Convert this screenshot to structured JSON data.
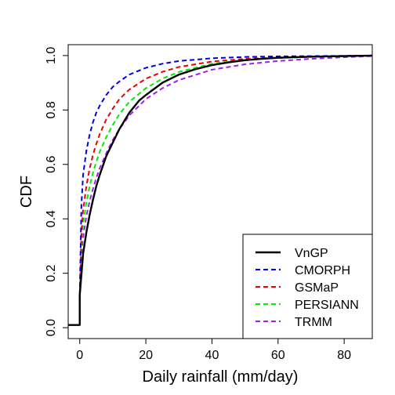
{
  "chart_data": {
    "type": "line",
    "title": "",
    "xlabel": "Daily rainfall (mm/day)",
    "ylabel": "CDF",
    "xlim": [
      -3.5,
      88.5
    ],
    "ylim": [
      -0.04,
      1.04
    ],
    "x_ticks": [
      0,
      20,
      40,
      60,
      80
    ],
    "x_tick_labels": [
      "0",
      "20",
      "40",
      "60",
      "80"
    ],
    "y_ticks": [
      0.0,
      0.2,
      0.4,
      0.6,
      0.8,
      1.0
    ],
    "y_tick_labels": [
      "0.0",
      "0.2",
      "0.4",
      "0.6",
      "0.8",
      "1.0"
    ],
    "grid": false,
    "legend_position": "bottom-right",
    "series": [
      {
        "name": "VnGP",
        "color": "#000000",
        "dash": "solid",
        "x": [
          -3.5,
          0,
          0,
          1,
          2,
          3,
          4,
          5,
          6,
          8,
          10,
          12,
          15,
          18,
          20,
          25,
          30,
          35,
          40,
          45,
          50,
          55,
          60,
          70,
          80,
          88.5
        ],
        "y": [
          0.01,
          0.01,
          0.12,
          0.27,
          0.35,
          0.415,
          0.47,
          0.52,
          0.56,
          0.63,
          0.68,
          0.73,
          0.79,
          0.835,
          0.855,
          0.9,
          0.93,
          0.95,
          0.965,
          0.975,
          0.983,
          0.988,
          0.992,
          0.996,
          0.998,
          1.0
        ]
      },
      {
        "name": "CMORPH",
        "color": "#0000ee",
        "dash": "dashed",
        "x": [
          0,
          0.5,
          1,
          2,
          3,
          4,
          5,
          6,
          8,
          10,
          12,
          15,
          20,
          25,
          30,
          40,
          50,
          60,
          70,
          80,
          88.5
        ],
        "y": [
          0.12,
          0.45,
          0.56,
          0.65,
          0.71,
          0.755,
          0.79,
          0.815,
          0.855,
          0.885,
          0.905,
          0.93,
          0.955,
          0.97,
          0.98,
          0.99,
          0.995,
          0.997,
          0.998,
          0.999,
          1.0
        ]
      },
      {
        "name": "GSMaP",
        "color": "#ee0000",
        "dash": "dashed",
        "x": [
          0,
          0.5,
          1,
          2,
          3,
          4,
          5,
          6,
          8,
          10,
          12,
          15,
          20,
          25,
          30,
          40,
          50,
          60,
          70,
          80,
          88.5
        ],
        "y": [
          0.1,
          0.35,
          0.43,
          0.52,
          0.585,
          0.635,
          0.675,
          0.71,
          0.765,
          0.805,
          0.84,
          0.875,
          0.915,
          0.94,
          0.958,
          0.978,
          0.988,
          0.993,
          0.996,
          0.998,
          1.0
        ]
      },
      {
        "name": "PERSIANN",
        "color": "#00ee00",
        "dash": "dashed",
        "x": [
          0,
          0.5,
          1,
          2,
          3,
          4,
          5,
          6,
          8,
          10,
          12,
          15,
          20,
          25,
          30,
          40,
          50,
          60,
          70,
          80,
          88.5
        ],
        "y": [
          0.1,
          0.3,
          0.38,
          0.46,
          0.52,
          0.57,
          0.61,
          0.645,
          0.7,
          0.745,
          0.785,
          0.83,
          0.88,
          0.915,
          0.94,
          0.97,
          0.984,
          0.991,
          0.995,
          0.998,
          1.0
        ]
      },
      {
        "name": "TRMM",
        "color": "#a020f0",
        "dash": "dashed",
        "x": [
          0,
          0.5,
          1,
          2,
          3,
          4,
          5,
          6,
          8,
          10,
          12,
          15,
          20,
          25,
          30,
          40,
          50,
          60,
          70,
          80,
          88.5
        ],
        "y": [
          0.1,
          0.26,
          0.33,
          0.41,
          0.465,
          0.51,
          0.55,
          0.585,
          0.64,
          0.69,
          0.73,
          0.78,
          0.84,
          0.88,
          0.91,
          0.948,
          0.968,
          0.98,
          0.988,
          0.994,
          0.998
        ]
      }
    ]
  }
}
